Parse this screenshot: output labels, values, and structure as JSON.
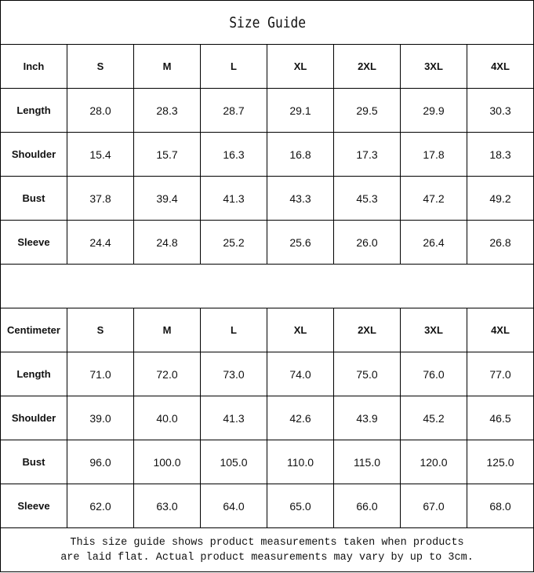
{
  "title": "Size Guide",
  "sizes": [
    "S",
    "M",
    "L",
    "XL",
    "2XL",
    "3XL",
    "4XL"
  ],
  "tables": [
    {
      "unit": "Inch",
      "rows": [
        {
          "label": "Length",
          "values": [
            "28.0",
            "28.3",
            "28.7",
            "29.1",
            "29.5",
            "29.9",
            "30.3"
          ]
        },
        {
          "label": "Shoulder",
          "values": [
            "15.4",
            "15.7",
            "16.3",
            "16.8",
            "17.3",
            "17.8",
            "18.3"
          ]
        },
        {
          "label": "Bust",
          "values": [
            "37.8",
            "39.4",
            "41.3",
            "43.3",
            "45.3",
            "47.2",
            "49.2"
          ]
        },
        {
          "label": "Sleeve",
          "values": [
            "24.4",
            "24.8",
            "25.2",
            "25.6",
            "26.0",
            "26.4",
            "26.8"
          ]
        }
      ]
    },
    {
      "unit": "Centimeter",
      "rows": [
        {
          "label": "Length",
          "values": [
            "71.0",
            "72.0",
            "73.0",
            "74.0",
            "75.0",
            "76.0",
            "77.0"
          ]
        },
        {
          "label": "Shoulder",
          "values": [
            "39.0",
            "40.0",
            "41.3",
            "42.6",
            "43.9",
            "45.2",
            "46.5"
          ]
        },
        {
          "label": "Bust",
          "values": [
            "96.0",
            "100.0",
            "105.0",
            "110.0",
            "115.0",
            "120.0",
            "125.0"
          ]
        },
        {
          "label": "Sleeve",
          "values": [
            "62.0",
            "63.0",
            "64.0",
            "65.0",
            "66.0",
            "67.0",
            "68.0"
          ]
        }
      ]
    }
  ],
  "note": {
    "line1": "This size guide shows product measurements taken when products",
    "line2": "are laid flat. Actual product measurements may vary by up to 3cm."
  }
}
